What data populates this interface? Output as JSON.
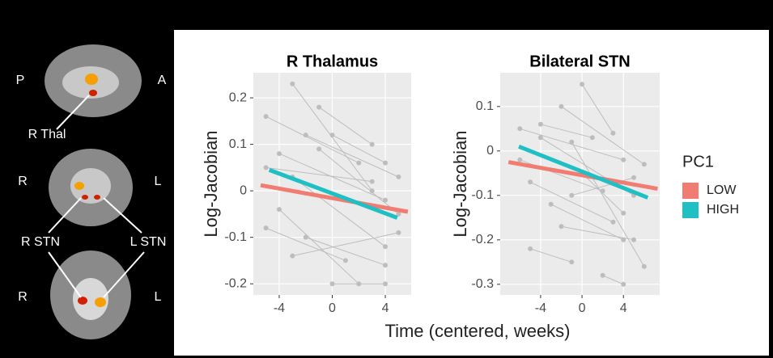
{
  "brain_labels": [
    "P",
    "A",
    "R Thal",
    "R",
    "L",
    "R STN",
    "L STN",
    "R",
    "L"
  ],
  "figure": {
    "xlabel": "Time (centered, weeks)",
    "legend_title": "PC1"
  },
  "chart_data": [
    {
      "type": "line",
      "title": "R Thalamus",
      "ylabel": "Log-Jacobian",
      "xlim": [
        -5.95,
        5.95
      ],
      "xticks": [
        -4,
        0,
        4
      ],
      "ylim": [
        -0.224,
        0.254
      ],
      "yticks": [
        -0.2,
        -0.1,
        0.0,
        0.1,
        0.2
      ],
      "grid": true,
      "subject_color": "#bdbdbd",
      "subjects": [
        {
          "x": [
            -5,
            2
          ],
          "values": [
            0.16,
            0.06
          ]
        },
        {
          "x": [
            -3,
            3
          ],
          "values": [
            0.23,
            0.0
          ]
        },
        {
          "x": [
            -4,
            4
          ],
          "values": [
            0.08,
            -0.02
          ]
        },
        {
          "x": [
            -2,
            5
          ],
          "values": [
            0.12,
            0.03
          ]
        },
        {
          "x": [
            -5,
            1
          ],
          "values": [
            -0.08,
            -0.15
          ]
        },
        {
          "x": [
            -3,
            4
          ],
          "values": [
            0.03,
            -0.12
          ]
        },
        {
          "x": [
            -1,
            5
          ],
          "values": [
            0.09,
            -0.05
          ]
        },
        {
          "x": [
            -4,
            2
          ],
          "values": [
            -0.04,
            -0.2
          ]
        },
        {
          "x": [
            0,
            4
          ],
          "values": [
            0.12,
            0.06
          ]
        },
        {
          "x": [
            -5,
            3
          ],
          "values": [
            0.05,
            0.02
          ]
        },
        {
          "x": [
            -2,
            4
          ],
          "values": [
            -0.1,
            -0.16
          ]
        },
        {
          "x": [
            0,
            4
          ],
          "values": [
            -0.2,
            -0.2
          ]
        },
        {
          "x": [
            -3,
            5
          ],
          "values": [
            -0.14,
            -0.09
          ]
        },
        {
          "x": [
            -1,
            3
          ],
          "values": [
            0.18,
            0.1
          ]
        }
      ],
      "series": [
        {
          "color": "#f07c72",
          "x": [
            -5.4,
            5.7
          ],
          "values": [
            0.012,
            -0.045
          ]
        },
        {
          "color": "#1fbfc4",
          "x": [
            -4.75,
            4.9
          ],
          "values": [
            0.045,
            -0.058
          ]
        }
      ]
    },
    {
      "type": "line",
      "title": "Bilateral STN",
      "ylabel": "Log-Jacobian",
      "xlim": [
        -7.9,
        7.5
      ],
      "xticks": [
        -4,
        0,
        4
      ],
      "ylim": [
        -0.324,
        0.176
      ],
      "yticks": [
        -0.3,
        -0.2,
        -0.1,
        0.0,
        0.1
      ],
      "grid": true,
      "subject_color": "#bdbdbd",
      "subjects": [
        {
          "x": [
            -6,
            4
          ],
          "values": [
            0.05,
            -0.02
          ]
        },
        {
          "x": [
            -4,
            5
          ],
          "values": [
            0.03,
            -0.1
          ]
        },
        {
          "x": [
            -2,
            6
          ],
          "values": [
            0.1,
            -0.03
          ]
        },
        {
          "x": [
            -5,
            3
          ],
          "values": [
            -0.07,
            -0.16
          ]
        },
        {
          "x": [
            -3,
            4
          ],
          "values": [
            -0.12,
            -0.2
          ]
        },
        {
          "x": [
            0,
            3
          ],
          "values": [
            0.15,
            0.04
          ]
        },
        {
          "x": [
            -5,
            -1
          ],
          "values": [
            -0.22,
            -0.25
          ]
        },
        {
          "x": [
            -1,
            6
          ],
          "values": [
            0.02,
            -0.26
          ]
        },
        {
          "x": [
            0,
            4
          ],
          "values": [
            -0.05,
            -0.14
          ]
        },
        {
          "x": [
            -6,
            2
          ],
          "values": [
            -0.02,
            -0.09
          ]
        },
        {
          "x": [
            -2,
            5
          ],
          "values": [
            -0.17,
            -0.2
          ]
        },
        {
          "x": [
            2,
            4
          ],
          "values": [
            -0.28,
            -0.3
          ]
        },
        {
          "x": [
            -4,
            1
          ],
          "values": [
            0.06,
            0.03
          ]
        },
        {
          "x": [
            -1,
            5
          ],
          "values": [
            -0.1,
            -0.06
          ]
        }
      ],
      "series": [
        {
          "name": "LOW",
          "color": "#f07c72",
          "x": [
            -7.1,
            7.3
          ],
          "values": [
            -0.025,
            -0.085
          ]
        },
        {
          "name": "HIGH",
          "color": "#1fbfc4",
          "x": [
            -6.1,
            6.35
          ],
          "values": [
            0.01,
            -0.105
          ]
        }
      ]
    }
  ]
}
